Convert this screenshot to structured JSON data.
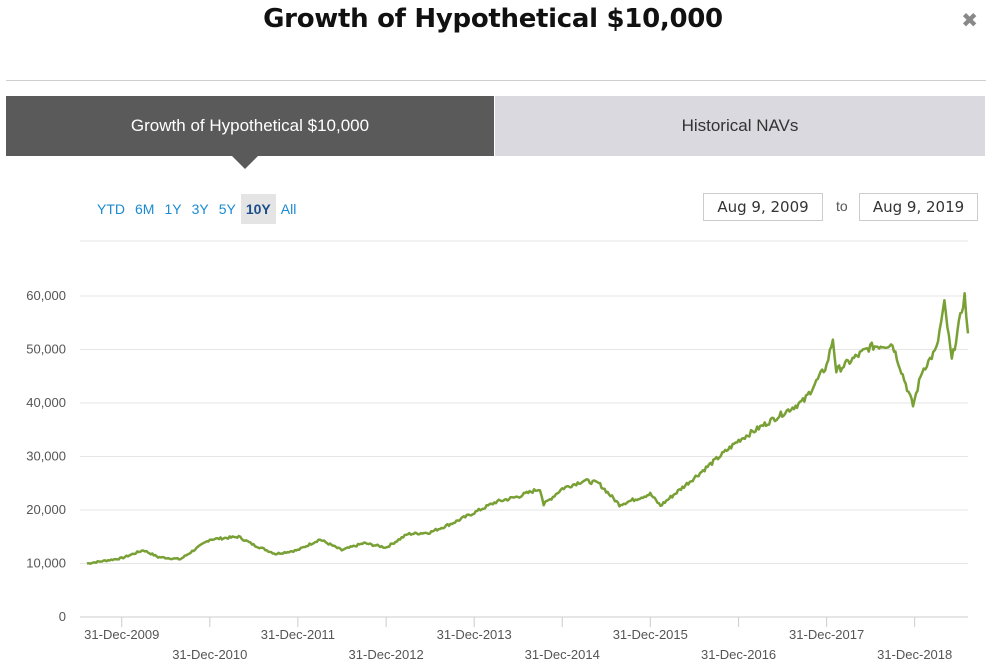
{
  "header": {
    "title": "Growth of Hypothetical $10,000",
    "close_glyph": "✖"
  },
  "tabs": [
    {
      "label": "Growth of Hypothetical $10,000",
      "active": true
    },
    {
      "label": "Historical NAVs",
      "active": false
    }
  ],
  "ranges": {
    "items": [
      "YTD",
      "6M",
      "1Y",
      "3Y",
      "5Y",
      "10Y",
      "All"
    ],
    "selected": "10Y"
  },
  "date_range": {
    "from": "Aug 9, 2009",
    "to_label": "to",
    "to": "Aug 9, 2019"
  },
  "colors": {
    "line": "#78a035",
    "active_tab": "#5a5a5a",
    "inactive_tab": "#d9d9df",
    "link": "#1a8bd3"
  },
  "chart_data": {
    "type": "line",
    "y_ticks": [
      "0",
      "10,000",
      "20,000",
      "30,000",
      "40,000",
      "50,000",
      "60,000"
    ],
    "ylim": [
      0,
      60000
    ],
    "x_tick_labels": [
      "31-Dec-2009",
      "31-Dec-2010",
      "31-Dec-2011",
      "31-Dec-2012",
      "31-Dec-2013",
      "31-Dec-2014",
      "31-Dec-2015",
      "31-Dec-2016",
      "31-Dec-2017",
      "31-Dec-2018"
    ],
    "grid": true,
    "series": [
      {
        "x": [
          "2009-08-09",
          "2009-12-31",
          "2010-03-31",
          "2010-05-31",
          "2010-08-31",
          "2010-12-31",
          "2011-04-30",
          "2011-06-30",
          "2011-09-30",
          "2011-12-31",
          "2012-03-31",
          "2012-06-30",
          "2012-09-30",
          "2012-12-31",
          "2013-03-31",
          "2013-06-30",
          "2013-09-30",
          "2013-12-31",
          "2014-03-31",
          "2014-06-30",
          "2014-09-30",
          "2014-10-15",
          "2014-12-31",
          "2015-03-31",
          "2015-05-31",
          "2015-08-25",
          "2015-12-31",
          "2016-02-11",
          "2016-06-30",
          "2016-09-30",
          "2016-12-31",
          "2017-03-31",
          "2017-06-30",
          "2017-09-30",
          "2017-12-31",
          "2018-01-26",
          "2018-02-09",
          "2018-06-30",
          "2018-09-30",
          "2018-12-24",
          "2019-01-31",
          "2019-03-31",
          "2019-05-03",
          "2019-06-03",
          "2019-07-26",
          "2019-08-09"
        ],
        "y": [
          10000,
          11000,
          12500,
          11200,
          10800,
          14500,
          15000,
          13500,
          11800,
          12500,
          14500,
          12500,
          13800,
          13000,
          15500,
          15800,
          17500,
          19500,
          21500,
          22500,
          24000,
          21000,
          24000,
          25500,
          25000,
          21000,
          23000,
          20800,
          26000,
          29500,
          33000,
          35500,
          38000,
          40500,
          47000,
          52000,
          46000,
          50500,
          51000,
          39500,
          46000,
          50000,
          58500,
          48000,
          60000,
          53000
        ]
      }
    ]
  }
}
